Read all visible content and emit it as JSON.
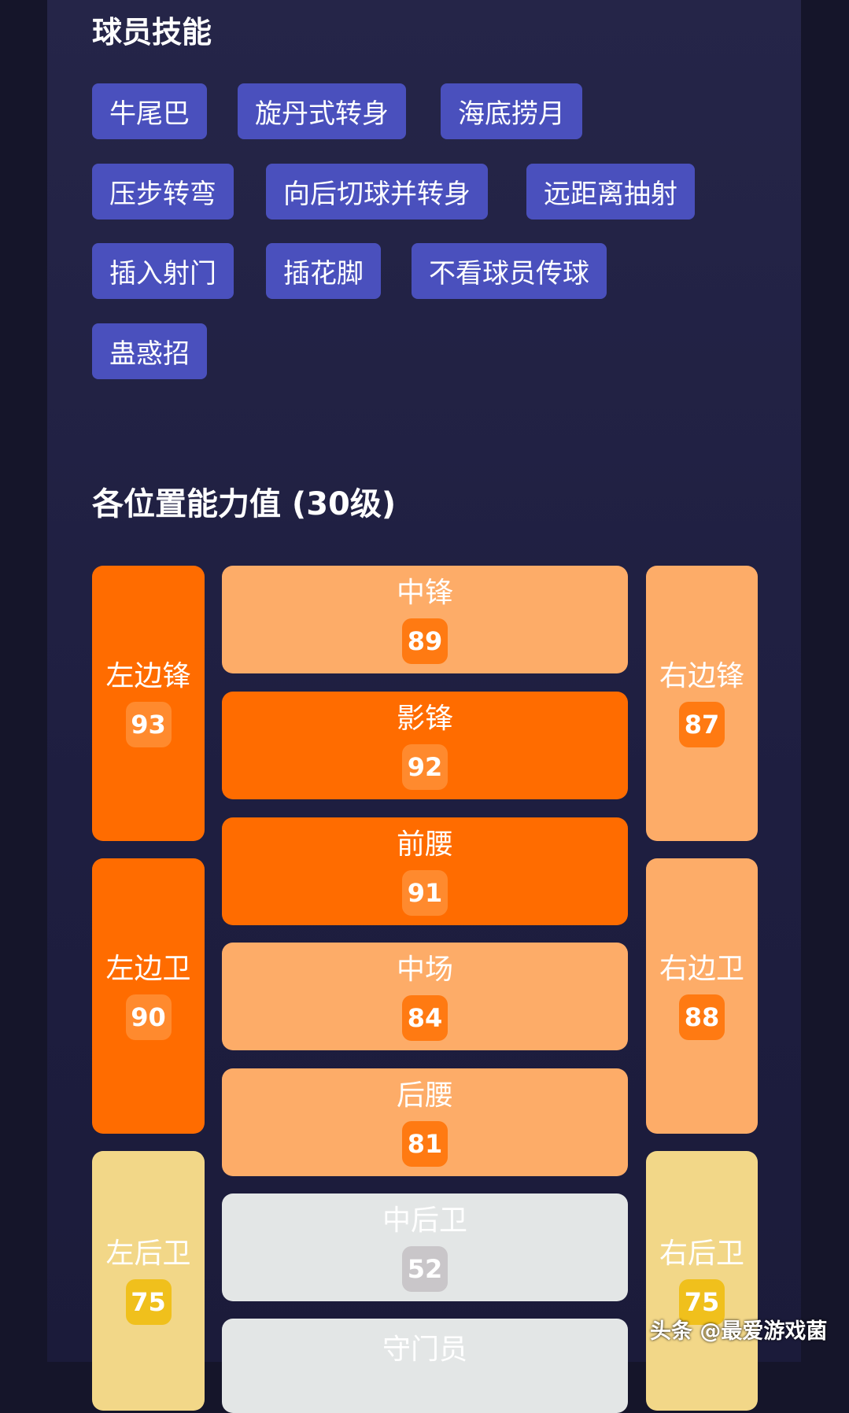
{
  "skills": {
    "title": "球员技能",
    "items": [
      "牛尾巴",
      "旋丹式转身",
      "海底捞月",
      "压步转弯",
      "向后切球并转身",
      "远距离抽射",
      "插入射门",
      "插花脚",
      "不看球员传球",
      "蛊惑招"
    ]
  },
  "positions": {
    "title": "各位置能力值 (30级)",
    "items": [
      {
        "name": "左边锋",
        "value": "93",
        "tier": "high"
      },
      {
        "name": "左边卫",
        "value": "90",
        "tier": "high"
      },
      {
        "name": "左后卫",
        "value": "75",
        "tier": "low"
      },
      {
        "name": "中锋",
        "value": "89",
        "tier": "mid"
      },
      {
        "name": "影锋",
        "value": "92",
        "tier": "high"
      },
      {
        "name": "前腰",
        "value": "91",
        "tier": "high"
      },
      {
        "name": "中场",
        "value": "84",
        "tier": "mid"
      },
      {
        "name": "后腰",
        "value": "81",
        "tier": "mid"
      },
      {
        "name": "中后卫",
        "value": "52",
        "tier": "poor"
      },
      {
        "name": "守门员",
        "value": "",
        "tier": "poor"
      },
      {
        "name": "右边锋",
        "value": "87",
        "tier": "mid"
      },
      {
        "name": "右边卫",
        "value": "88",
        "tier": "mid"
      },
      {
        "name": "右后卫",
        "value": "75",
        "tier": "low"
      }
    ]
  },
  "colors": {
    "high": "#ff6c00",
    "mid": "#fdac68",
    "low": "#f2d788",
    "poor": "#e3e6e6",
    "chip": "#4a50bd"
  },
  "watermark": "头条 @最爱游戏菌"
}
